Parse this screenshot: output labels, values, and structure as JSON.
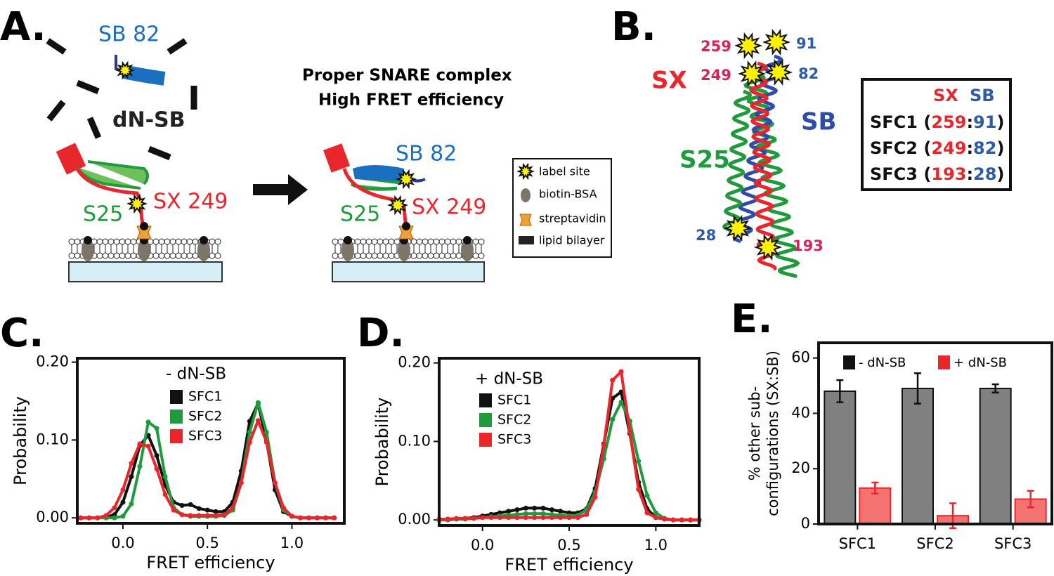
{
  "panel_a": {
    "label": "A.",
    "sb_label": "SB 82",
    "dn_label": "dN-SB",
    "s25_label": "S25",
    "sx_label": "SX 249",
    "title": [
      "Proper SNARE complex",
      "High FRET efficiency"
    ],
    "right_sb_label": "SB 82",
    "right_s25_label": "S25",
    "right_sx_label": "SX 249",
    "legend": [
      "label site",
      "biotin-BSA",
      "streptavidin",
      "lipid bilayer"
    ]
  },
  "panel_b": {
    "label": "B.",
    "sx_name": "SX",
    "sb_name": "SB",
    "s25_name": "S25",
    "sites": {
      "sx_top": "259",
      "sx_mid": "249",
      "sb_top": "91",
      "sb_mid": "82",
      "sb_bottom": "28",
      "sx_bottom": "193"
    },
    "table": {
      "header": [
        "SX",
        "SB"
      ],
      "rows": [
        [
          "SFC1 (",
          "259",
          ":",
          "91",
          ")"
        ],
        [
          "SFC2 (",
          "249",
          ":",
          "82",
          ")"
        ],
        [
          "SFC3 (",
          "193",
          ":",
          "28",
          ")"
        ]
      ]
    }
  },
  "chart_data": [
    {
      "type": "line",
      "panel": "C.",
      "xlabel": "FRET efficiency",
      "ylabel": "Probability",
      "legend_title": "- dN-SB",
      "x": [
        -0.25,
        -0.2,
        -0.15,
        -0.1,
        -0.05,
        0,
        0.05,
        0.1,
        0.15,
        0.2,
        0.25,
        0.3,
        0.35,
        0.4,
        0.45,
        0.5,
        0.55,
        0.6,
        0.65,
        0.7,
        0.75,
        0.8,
        0.85,
        0.9,
        0.95,
        1.0,
        1.05,
        1.1,
        1.15,
        1.2,
        1.25
      ],
      "series": [
        {
          "name": "SFC1",
          "color": "#111111",
          "values": [
            0,
            0,
            0,
            0.001,
            0.004,
            0.02,
            0.053,
            0.093,
            0.106,
            0.08,
            0.042,
            0.02,
            0.016,
            0.017,
            0.012,
            0.01,
            0.008,
            0.008,
            0.02,
            0.06,
            0.124,
            0.147,
            0.098,
            0.036,
            0.008,
            0.002,
            0,
            0,
            0,
            0,
            0
          ]
        },
        {
          "name": "SFC2",
          "color": "#1f9a3c",
          "values": [
            0,
            0,
            0,
            0,
            0,
            0.002,
            0.018,
            0.066,
            0.123,
            0.115,
            0.053,
            0.013,
            0.004,
            0.002,
            0.002,
            0.002,
            0.002,
            0.003,
            0.01,
            0.045,
            0.11,
            0.148,
            0.11,
            0.045,
            0.01,
            0.002,
            0,
            0,
            0,
            0,
            0
          ]
        },
        {
          "name": "SFC3",
          "color": "#e8262c",
          "values": [
            0,
            0,
            0,
            0.003,
            0.013,
            0.036,
            0.07,
            0.095,
            0.092,
            0.063,
            0.03,
            0.01,
            0.004,
            0.003,
            0.003,
            0.003,
            0.003,
            0.004,
            0.013,
            0.045,
            0.097,
            0.125,
            0.097,
            0.045,
            0.013,
            0.002,
            0,
            0,
            0,
            0,
            0
          ]
        }
      ],
      "xlim": [
        -0.27,
        1.31
      ],
      "xticks": [
        {
          "value": 0,
          "label": "0.0"
        },
        0.5,
        {
          "value": 1,
          "label": "1.0"
        }
      ],
      "ylim": [
        -0.007,
        0.205
      ],
      "yticks": [
        {
          "value": 0,
          "label": "0.00"
        },
        {
          "value": 0.1,
          "label": "0.10"
        },
        {
          "value": 0.2,
          "label": "0.20"
        }
      ]
    },
    {
      "type": "line",
      "panel": "D.",
      "xlabel": "FRET efficiency",
      "ylabel": "Probability",
      "legend_title": "+ dN-SB",
      "x": [
        -0.25,
        -0.2,
        -0.15,
        -0.1,
        -0.05,
        0,
        0.05,
        0.1,
        0.15,
        0.2,
        0.25,
        0.3,
        0.35,
        0.4,
        0.45,
        0.5,
        0.55,
        0.6,
        0.65,
        0.7,
        0.75,
        0.8,
        0.85,
        0.9,
        0.95,
        1.0,
        1.05,
        1.1,
        1.15,
        1.2,
        1.25
      ],
      "series": [
        {
          "name": "SFC1",
          "color": "#111111",
          "values": [
            0,
            0.001,
            0.001,
            0.002,
            0.003,
            0.005,
            0.007,
            0.009,
            0.011,
            0.013,
            0.015,
            0.015,
            0.015,
            0.013,
            0.011,
            0.009,
            0.009,
            0.014,
            0.04,
            0.097,
            0.155,
            0.163,
            0.11,
            0.048,
            0.014,
            0.003,
            0.001,
            0,
            0,
            0,
            0
          ]
        },
        {
          "name": "SFC2",
          "color": "#1f9a3c",
          "values": [
            0,
            0,
            0.001,
            0.001,
            0.002,
            0.003,
            0.004,
            0.005,
            0.006,
            0.007,
            0.008,
            0.008,
            0.008,
            0.007,
            0.006,
            0.005,
            0.006,
            0.013,
            0.035,
            0.078,
            0.128,
            0.15,
            0.126,
            0.075,
            0.031,
            0.009,
            0.002,
            0,
            0,
            0,
            0
          ]
        },
        {
          "name": "SFC3",
          "color": "#e8262c",
          "values": [
            0.001,
            0.001,
            0.002,
            0.002,
            0.002,
            0.003,
            0.003,
            0.003,
            0.003,
            0.003,
            0.003,
            0.003,
            0.003,
            0.003,
            0.003,
            0.003,
            0.003,
            0.007,
            0.029,
            0.095,
            0.178,
            0.189,
            0.112,
            0.039,
            0.009,
            0.003,
            0.001,
            0,
            0,
            0,
            0
          ]
        }
      ],
      "xlim": [
        -0.25,
        1.25
      ],
      "xticks": [
        {
          "value": 0,
          "label": "0.0"
        },
        0.5,
        {
          "value": 1,
          "label": "1.0"
        }
      ],
      "ylim": [
        -0.007,
        0.206
      ],
      "yticks": [
        {
          "value": 0,
          "label": "0.00"
        },
        {
          "value": 0.1,
          "label": "0.10"
        },
        {
          "value": 0.2,
          "label": "0.20"
        }
      ]
    },
    {
      "type": "bar",
      "panel": "E.",
      "ylabel": [
        "% other sub-",
        "configurations  (SX:SB)"
      ],
      "categories": [
        "SFC1",
        "SFC2",
        "SFC3"
      ],
      "series": [
        {
          "name": "- dN-SB",
          "color": "#808080",
          "edgecolor": "#111111",
          "values": [
            48,
            49,
            49
          ],
          "errors": [
            4,
            5.5,
            1.5
          ]
        },
        {
          "name": "+ dN-SB",
          "color": "#f47272",
          "edgecolor": "#e8262c",
          "values": [
            13,
            3,
            9
          ],
          "errors": [
            2,
            4.5,
            3
          ]
        }
      ],
      "ylim": [
        0,
        65.5
      ],
      "yticks": [
        0,
        20,
        40,
        60
      ]
    }
  ]
}
